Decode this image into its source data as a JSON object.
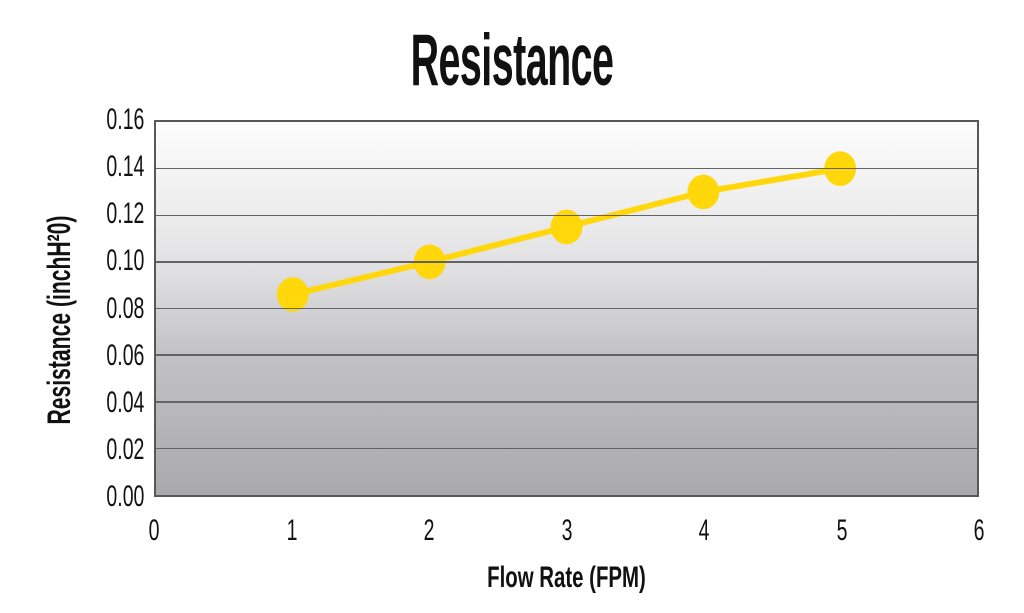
{
  "chart_data": {
    "type": "line",
    "title": "Resistance",
    "xlabel": "Flow Rate (FPM)",
    "ylabel": "Resistance (inchH²0)",
    "series": [
      {
        "name": "Resistance",
        "x": [
          1,
          2,
          3,
          4,
          5
        ],
        "y": [
          0.086,
          0.1,
          0.115,
          0.13,
          0.14
        ]
      }
    ],
    "xlim": [
      0,
      6
    ],
    "ylim": [
      0,
      0.16
    ],
    "x_ticks": [
      "0",
      "1",
      "2",
      "3",
      "4",
      "5",
      "6"
    ],
    "y_ticks": [
      "0.00",
      "0.02",
      "0.04",
      "0.06",
      "0.08",
      "0.10",
      "0.12",
      "0.14",
      "0.16"
    ],
    "grid": "horizontal-only",
    "legend": "none",
    "marker": "ellipse",
    "colors": {
      "line": "#FFD70A",
      "marker": "#FFD70A",
      "gridline": "#636366",
      "plot_border": "#58585a",
      "plot_bg_top": "#fdfdfd",
      "plot_bg_bottom": "#a9a9ab",
      "text": "#111111",
      "page_background": "#ffffff"
    }
  }
}
